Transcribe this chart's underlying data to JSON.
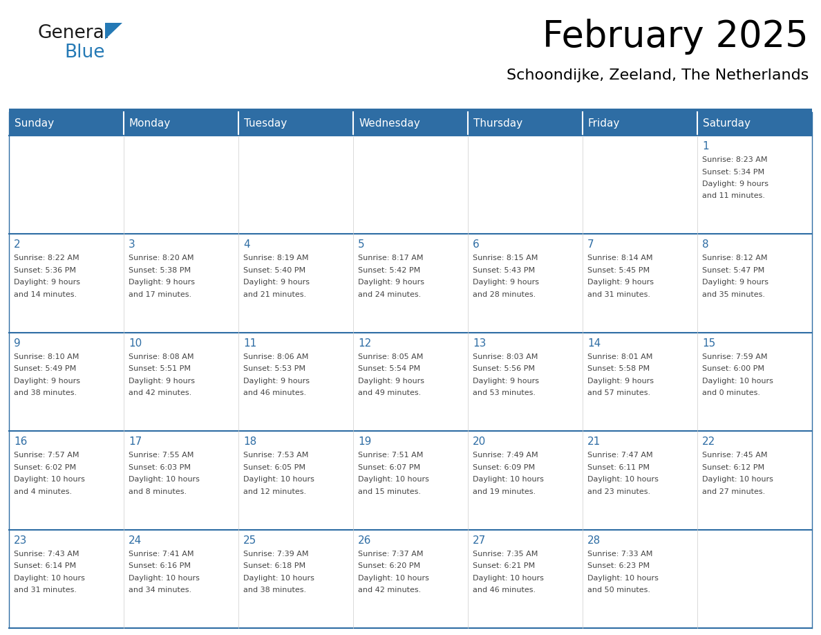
{
  "title": "February 2025",
  "subtitle": "Schoondijke, Zeeland, The Netherlands",
  "days_of_week": [
    "Sunday",
    "Monday",
    "Tuesday",
    "Wednesday",
    "Thursday",
    "Friday",
    "Saturday"
  ],
  "header_bg": "#2E6DA4",
  "header_text": "#FFFFFF",
  "cell_bg": "#FFFFFF",
  "cell_bg_alt": "#F5F5F5",
  "day_number_color": "#2E6DA4",
  "text_color": "#444444",
  "border_color": "#2E6DA4",
  "separator_color": "#2E6DA4",
  "logo_general_color": "#1a1a1a",
  "logo_blue_color": "#2479B5",
  "calendar_data": [
    [
      {
        "day": null,
        "sunrise": null,
        "sunset": null,
        "daylight": null
      },
      {
        "day": null,
        "sunrise": null,
        "sunset": null,
        "daylight": null
      },
      {
        "day": null,
        "sunrise": null,
        "sunset": null,
        "daylight": null
      },
      {
        "day": null,
        "sunrise": null,
        "sunset": null,
        "daylight": null
      },
      {
        "day": null,
        "sunrise": null,
        "sunset": null,
        "daylight": null
      },
      {
        "day": null,
        "sunrise": null,
        "sunset": null,
        "daylight": null
      },
      {
        "day": 1,
        "sunrise": "8:23 AM",
        "sunset": "5:34 PM",
        "daylight": "9 hours and 11 minutes."
      }
    ],
    [
      {
        "day": 2,
        "sunrise": "8:22 AM",
        "sunset": "5:36 PM",
        "daylight": "9 hours and 14 minutes."
      },
      {
        "day": 3,
        "sunrise": "8:20 AM",
        "sunset": "5:38 PM",
        "daylight": "9 hours and 17 minutes."
      },
      {
        "day": 4,
        "sunrise": "8:19 AM",
        "sunset": "5:40 PM",
        "daylight": "9 hours and 21 minutes."
      },
      {
        "day": 5,
        "sunrise": "8:17 AM",
        "sunset": "5:42 PM",
        "daylight": "9 hours and 24 minutes."
      },
      {
        "day": 6,
        "sunrise": "8:15 AM",
        "sunset": "5:43 PM",
        "daylight": "9 hours and 28 minutes."
      },
      {
        "day": 7,
        "sunrise": "8:14 AM",
        "sunset": "5:45 PM",
        "daylight": "9 hours and 31 minutes."
      },
      {
        "day": 8,
        "sunrise": "8:12 AM",
        "sunset": "5:47 PM",
        "daylight": "9 hours and 35 minutes."
      }
    ],
    [
      {
        "day": 9,
        "sunrise": "8:10 AM",
        "sunset": "5:49 PM",
        "daylight": "9 hours and 38 minutes."
      },
      {
        "day": 10,
        "sunrise": "8:08 AM",
        "sunset": "5:51 PM",
        "daylight": "9 hours and 42 minutes."
      },
      {
        "day": 11,
        "sunrise": "8:06 AM",
        "sunset": "5:53 PM",
        "daylight": "9 hours and 46 minutes."
      },
      {
        "day": 12,
        "sunrise": "8:05 AM",
        "sunset": "5:54 PM",
        "daylight": "9 hours and 49 minutes."
      },
      {
        "day": 13,
        "sunrise": "8:03 AM",
        "sunset": "5:56 PM",
        "daylight": "9 hours and 53 minutes."
      },
      {
        "day": 14,
        "sunrise": "8:01 AM",
        "sunset": "5:58 PM",
        "daylight": "9 hours and 57 minutes."
      },
      {
        "day": 15,
        "sunrise": "7:59 AM",
        "sunset": "6:00 PM",
        "daylight": "10 hours and 0 minutes."
      }
    ],
    [
      {
        "day": 16,
        "sunrise": "7:57 AM",
        "sunset": "6:02 PM",
        "daylight": "10 hours and 4 minutes."
      },
      {
        "day": 17,
        "sunrise": "7:55 AM",
        "sunset": "6:03 PM",
        "daylight": "10 hours and 8 minutes."
      },
      {
        "day": 18,
        "sunrise": "7:53 AM",
        "sunset": "6:05 PM",
        "daylight": "10 hours and 12 minutes."
      },
      {
        "day": 19,
        "sunrise": "7:51 AM",
        "sunset": "6:07 PM",
        "daylight": "10 hours and 15 minutes."
      },
      {
        "day": 20,
        "sunrise": "7:49 AM",
        "sunset": "6:09 PM",
        "daylight": "10 hours and 19 minutes."
      },
      {
        "day": 21,
        "sunrise": "7:47 AM",
        "sunset": "6:11 PM",
        "daylight": "10 hours and 23 minutes."
      },
      {
        "day": 22,
        "sunrise": "7:45 AM",
        "sunset": "6:12 PM",
        "daylight": "10 hours and 27 minutes."
      }
    ],
    [
      {
        "day": 23,
        "sunrise": "7:43 AM",
        "sunset": "6:14 PM",
        "daylight": "10 hours and 31 minutes."
      },
      {
        "day": 24,
        "sunrise": "7:41 AM",
        "sunset": "6:16 PM",
        "daylight": "10 hours and 34 minutes."
      },
      {
        "day": 25,
        "sunrise": "7:39 AM",
        "sunset": "6:18 PM",
        "daylight": "10 hours and 38 minutes."
      },
      {
        "day": 26,
        "sunrise": "7:37 AM",
        "sunset": "6:20 PM",
        "daylight": "10 hours and 42 minutes."
      },
      {
        "day": 27,
        "sunrise": "7:35 AM",
        "sunset": "6:21 PM",
        "daylight": "10 hours and 46 minutes."
      },
      {
        "day": 28,
        "sunrise": "7:33 AM",
        "sunset": "6:23 PM",
        "daylight": "10 hours and 50 minutes."
      },
      {
        "day": null,
        "sunrise": null,
        "sunset": null,
        "daylight": null
      }
    ]
  ]
}
